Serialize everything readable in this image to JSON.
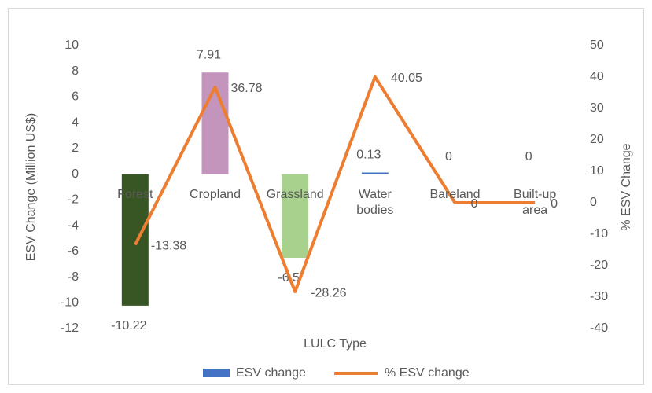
{
  "chart_data": {
    "type": "combo",
    "categories": [
      "Forest",
      "Cropland",
      "Grassland",
      "Water bodies",
      "Bareland",
      "Built-up area"
    ],
    "series": [
      {
        "name": "ESV change",
        "type": "bar",
        "color": "#4472c4",
        "colors": [
          "#375623",
          "#c395bd",
          "#a9d18e",
          "#4472c4",
          "#4472c4",
          "#4472c4"
        ],
        "values": [
          -10.22,
          7.91,
          -6.5,
          0.13,
          0,
          0
        ]
      },
      {
        "name": "% ESV change",
        "type": "line",
        "axis": "y2",
        "color": "#ed7d31",
        "values": [
          -13.38,
          36.78,
          -28.26,
          40.05,
          0,
          0
        ]
      }
    ],
    "ylabel": "ESV Change (Million US$)",
    "y2label": "% ESV Change",
    "xlabel": "LULC Type",
    "ylim": [
      -12,
      10
    ],
    "yticks": [
      -12,
      -10,
      -8,
      -6,
      -4,
      -2,
      0,
      2,
      4,
      6,
      8,
      10
    ],
    "y2lim": [
      -40,
      50
    ],
    "y2ticks": [
      -40,
      -30,
      -20,
      -10,
      0,
      10,
      20,
      30,
      40,
      50
    ],
    "legend": "bottom"
  }
}
